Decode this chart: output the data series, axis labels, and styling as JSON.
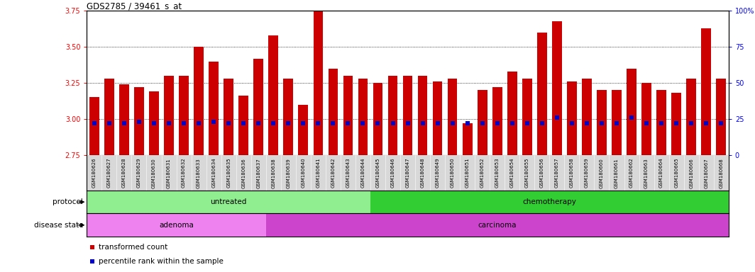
{
  "title": "GDS2785 / 39461_s_at",
  "samples": [
    "GSM180626",
    "GSM180627",
    "GSM180628",
    "GSM180629",
    "GSM180630",
    "GSM180631",
    "GSM180632",
    "GSM180633",
    "GSM180634",
    "GSM180635",
    "GSM180636",
    "GSM180637",
    "GSM180638",
    "GSM180639",
    "GSM180640",
    "GSM180641",
    "GSM180642",
    "GSM180643",
    "GSM180644",
    "GSM180645",
    "GSM180646",
    "GSM180647",
    "GSM180648",
    "GSM180649",
    "GSM180650",
    "GSM180651",
    "GSM180652",
    "GSM180653",
    "GSM180654",
    "GSM180655",
    "GSM180656",
    "GSM180657",
    "GSM180658",
    "GSM180659",
    "GSM180660",
    "GSM180661",
    "GSM180662",
    "GSM180663",
    "GSM180664",
    "GSM180665",
    "GSM180666",
    "GSM180667",
    "GSM180668"
  ],
  "bar_values": [
    3.15,
    3.28,
    3.24,
    3.22,
    3.19,
    3.3,
    3.3,
    3.5,
    3.4,
    3.28,
    3.16,
    3.42,
    3.58,
    3.28,
    3.1,
    3.75,
    3.35,
    3.3,
    3.28,
    3.25,
    3.3,
    3.3,
    3.3,
    3.26,
    3.28,
    2.97,
    3.2,
    3.22,
    3.33,
    3.28,
    3.6,
    3.68,
    3.26,
    3.28,
    3.2,
    3.2,
    3.35,
    3.25,
    3.2,
    3.18,
    3.28,
    3.63,
    3.28
  ],
  "percentile_values": [
    2.97,
    2.97,
    2.97,
    2.98,
    2.97,
    2.97,
    2.97,
    2.97,
    2.98,
    2.97,
    2.97,
    2.97,
    2.97,
    2.97,
    2.97,
    2.97,
    2.97,
    2.97,
    2.97,
    2.97,
    2.97,
    2.97,
    2.97,
    2.97,
    2.97,
    2.97,
    2.97,
    2.97,
    2.97,
    2.97,
    2.97,
    3.01,
    2.97,
    2.97,
    2.97,
    2.97,
    3.01,
    2.97,
    2.97,
    2.97,
    2.97,
    2.97,
    2.97
  ],
  "ylim_left": [
    2.75,
    3.75
  ],
  "ylim_right": [
    0,
    100
  ],
  "yticks_left": [
    2.75,
    3.0,
    3.25,
    3.5,
    3.75
  ],
  "yticks_right": [
    0,
    25,
    50,
    75,
    100
  ],
  "bar_color": "#cc0000",
  "percentile_color": "#0000cc",
  "plot_bg_color": "#ffffff",
  "tick_label_bg": "#d8d8d8",
  "protocol_untreated_count": 19,
  "protocol_color_untreated": "#90ee90",
  "protocol_color_chemo": "#32cd32",
  "adenoma_count": 12,
  "disease_color_adenoma": "#ee82ee",
  "disease_color_carcinoma": "#cc44cc",
  "protocol_label_untreated": "untreated",
  "protocol_label_chemo": "chemotherapy",
  "disease_label_adenoma": "adenoma",
  "disease_label_carcinoma": "carcinoma",
  "left_label_protocol": "protocol",
  "left_label_disease": "disease state",
  "legend_bar": "transformed count",
  "legend_pct": "percentile rank within the sample"
}
